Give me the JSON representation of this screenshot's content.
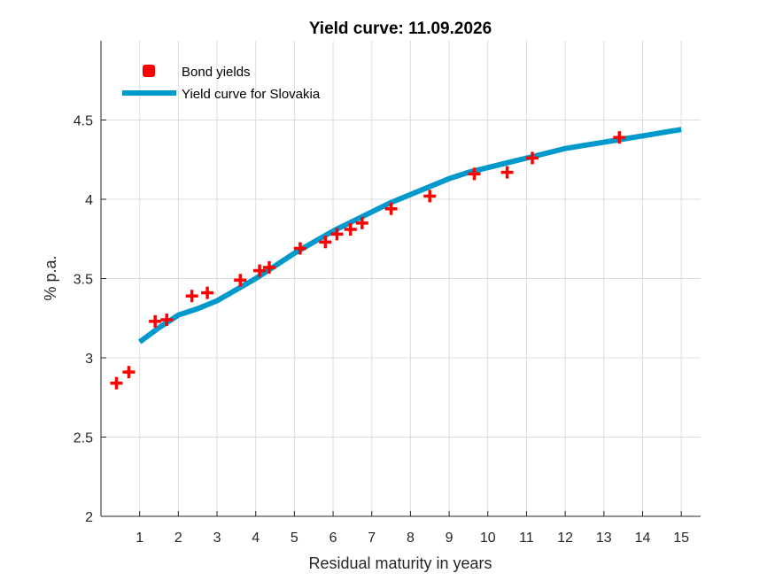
{
  "chart_data": {
    "type": "line",
    "title": "Yield curve: 11.09.2026",
    "xlabel": "Residual maturity in years",
    "ylabel": "% p.a.",
    "xlim": [
      0,
      15.5
    ],
    "ylim": [
      2,
      5
    ],
    "xticks": [
      1,
      2,
      3,
      4,
      5,
      6,
      7,
      8,
      9,
      10,
      11,
      12,
      13,
      14,
      15
    ],
    "yticks": [
      2,
      2.5,
      3,
      3.5,
      4,
      4.5
    ],
    "ytick_labels": [
      "2",
      "2.5",
      "3",
      "3.5",
      "4",
      "4.5"
    ],
    "grid": true,
    "legend_position": "top-left",
    "series": [
      {
        "name": "Bond yields",
        "kind": "markers",
        "marker": "plus",
        "color": "#ff0000",
        "x": [
          0.4,
          0.72,
          1.4,
          1.7,
          2.35,
          2.75,
          3.6,
          4.1,
          4.35,
          5.15,
          5.8,
          6.1,
          6.45,
          6.75,
          7.5,
          8.5,
          9.65,
          10.5,
          11.15,
          13.4
        ],
        "y": [
          2.84,
          2.91,
          3.23,
          3.24,
          3.39,
          3.41,
          3.49,
          3.55,
          3.57,
          3.69,
          3.73,
          3.78,
          3.81,
          3.85,
          3.94,
          4.02,
          4.16,
          4.17,
          4.26,
          4.39
        ]
      },
      {
        "name": "Yield curve for Slovakia",
        "kind": "line",
        "color": "#0099cc",
        "x": [
          1,
          1.5,
          2,
          2.5,
          3,
          3.5,
          4,
          4.5,
          5,
          5.5,
          6,
          6.5,
          7,
          7.5,
          8,
          8.5,
          9,
          9.5,
          10,
          10.5,
          11,
          11.5,
          12,
          12.5,
          13,
          13.5,
          14,
          14.5,
          15
        ],
        "y": [
          3.1,
          3.19,
          3.27,
          3.31,
          3.36,
          3.43,
          3.5,
          3.58,
          3.66,
          3.73,
          3.8,
          3.86,
          3.92,
          3.98,
          4.03,
          4.08,
          4.13,
          4.17,
          4.2,
          4.23,
          4.26,
          4.29,
          4.32,
          4.34,
          4.36,
          4.38,
          4.4,
          4.42,
          4.44
        ]
      }
    ]
  }
}
